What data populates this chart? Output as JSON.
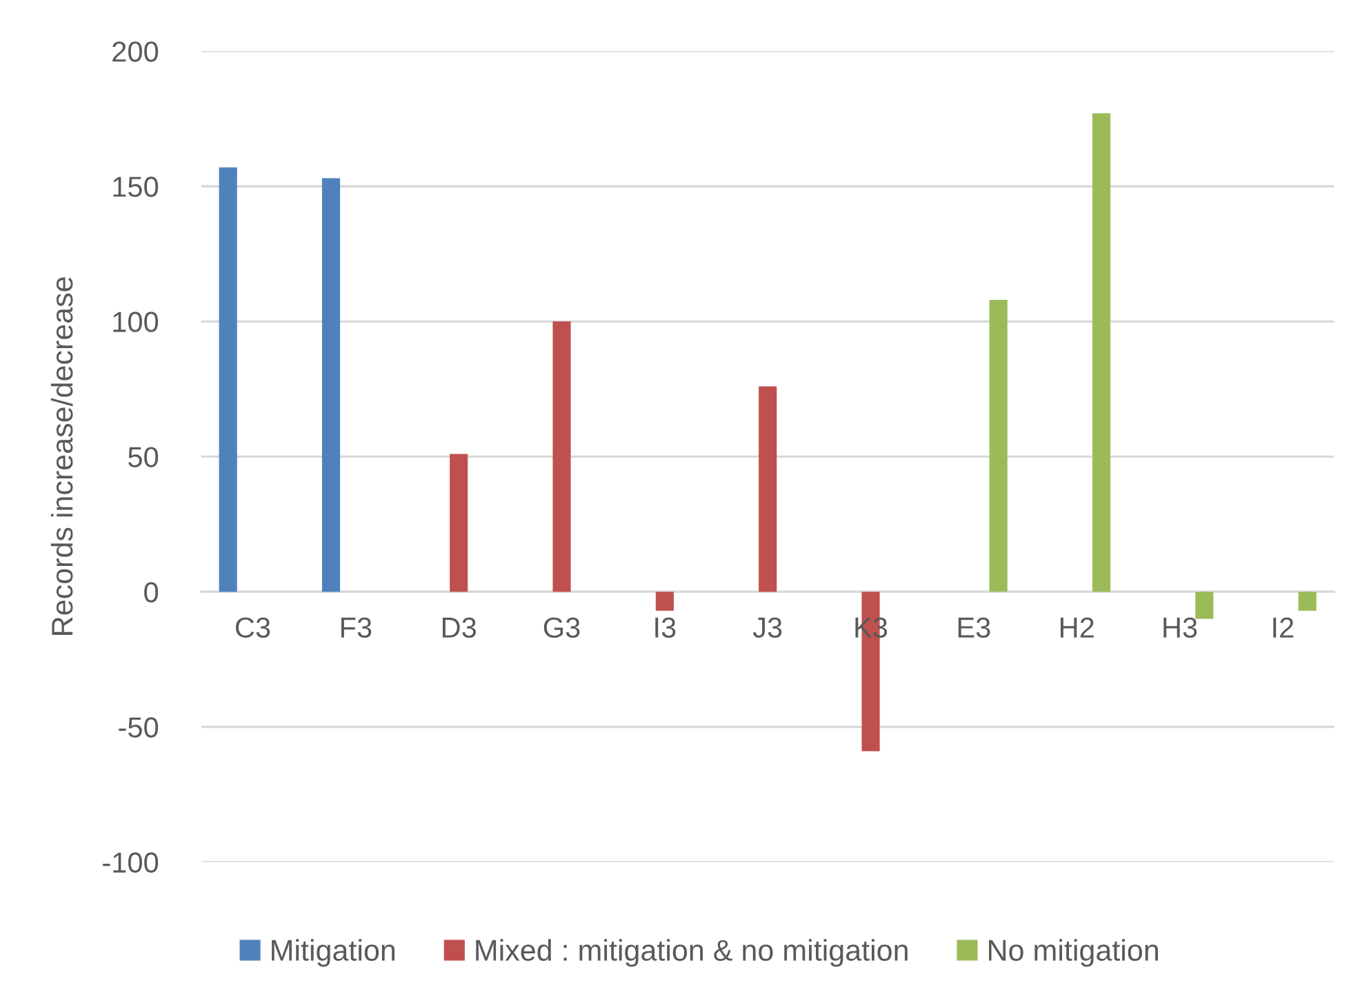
{
  "chart_data": {
    "type": "bar",
    "ylabel": "Records increase/decrease",
    "categories": [
      "C3",
      "F3",
      "D3",
      "G3",
      "I3",
      "J3",
      "K3",
      "E3",
      "H2",
      "H3",
      "I2"
    ],
    "series": [
      {
        "name": "Mitigation",
        "color": "#4f81bd",
        "values": [
          157,
          153,
          null,
          null,
          null,
          null,
          null,
          null,
          null,
          null,
          null
        ]
      },
      {
        "name": "Mixed : mitigation & no mitigation",
        "color": "#c0504d",
        "values": [
          null,
          null,
          51,
          100,
          -7,
          76,
          -59,
          null,
          null,
          null,
          null
        ]
      },
      {
        "name": "No mitigation",
        "color": "#9bbb59",
        "values": [
          null,
          null,
          null,
          null,
          null,
          null,
          null,
          108,
          177,
          -10,
          -7
        ]
      }
    ],
    "ylim": [
      -100,
      200
    ],
    "yticks": [
      -100,
      -50,
      0,
      50,
      100,
      150,
      200
    ],
    "grid": "y",
    "legend": "bottom"
  }
}
